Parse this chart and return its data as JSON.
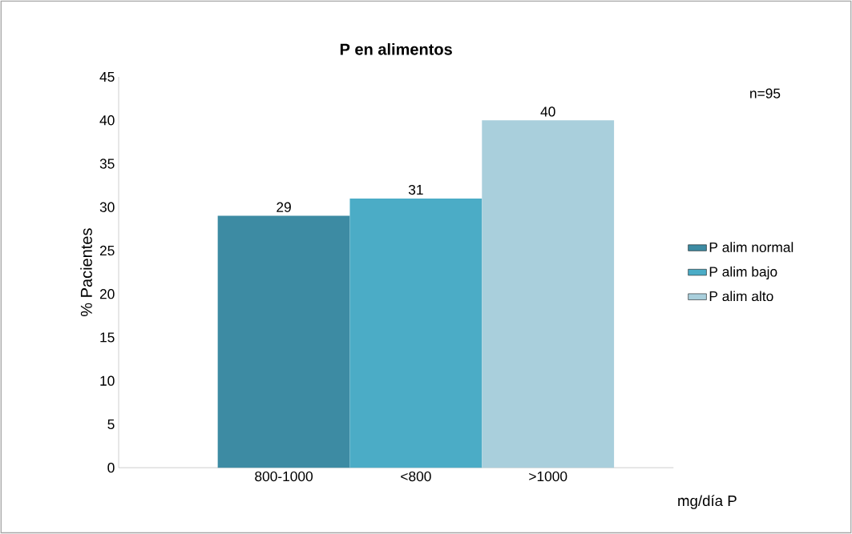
{
  "chart_data": {
    "type": "bar",
    "title": "P en alimentos",
    "ylabel": "% Pacientes",
    "xlabel": "mg/día P",
    "categories": [
      "800-1000",
      "<800",
      ">1000"
    ],
    "series": [
      {
        "name": "P alim normal",
        "color": "#3d8ba3",
        "values": [
          29,
          null,
          null
        ]
      },
      {
        "name": "P alim bajo",
        "color": "#4bacc6",
        "values": [
          null,
          31,
          null
        ]
      },
      {
        "name": "P alim alto",
        "color": "#a9cfdc",
        "values": [
          null,
          null,
          40
        ]
      }
    ],
    "ylim": [
      0,
      45
    ],
    "yticks": [
      0,
      5,
      10,
      15,
      20,
      25,
      30,
      35,
      40,
      45
    ],
    "data_labels": true,
    "legend": "right",
    "grid": false,
    "annotations": [
      "n=95"
    ]
  }
}
